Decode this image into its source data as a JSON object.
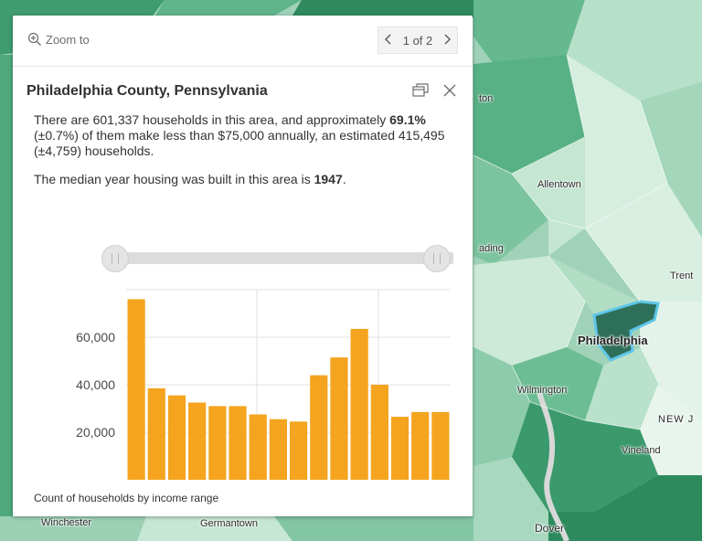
{
  "popup": {
    "zoom_to": "Zoom to",
    "pager": {
      "text": "1 of 2",
      "prev_icon": "chevron-left-icon",
      "next_icon": "chevron-right-icon"
    },
    "title": "Philadelphia County, Pennsylvania",
    "description": {
      "p1_before": "There are 601,337 households in this area, and approximately ",
      "p1_bold": "69.1%",
      "p1_after": " (±0.7%) of them make less than $75,000 annually, an estimated 415,495 (±4,759) households.",
      "p2_before": "The median year housing was built in this area is ",
      "p2_bold": "1947",
      "p2_after": "."
    },
    "caption": "Count of households by income range",
    "accent_color": "#f4a41f"
  },
  "map_labels": {
    "allentown": "Allentown",
    "philadelphia": "Philadelphia",
    "wilmington": "Wilmington",
    "new_jersey": "NEW J",
    "vineland": "Vineland",
    "dover": "Dover",
    "trenton": "Trent",
    "reading": "ading",
    "ton": "ton",
    "winchester": "Winchester",
    "germantown": "Germantown"
  },
  "chart_data": {
    "type": "bar",
    "title": "",
    "xlabel": "",
    "ylabel": "",
    "ylim": [
      0,
      80000
    ],
    "y_ticks": [
      "20,000",
      "40,000",
      "60,000"
    ],
    "y_tick_values": [
      20000,
      40000,
      60000
    ],
    "values": [
      76000,
      38500,
      35500,
      32500,
      31000,
      31000,
      27500,
      25500,
      24500,
      44000,
      51500,
      63500,
      40000,
      26500,
      28500,
      28500
    ],
    "color": "#f4a41f"
  }
}
